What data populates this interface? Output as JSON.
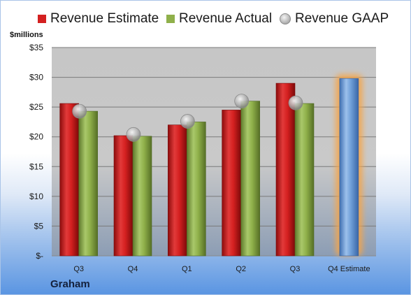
{
  "legend": {
    "estimate": "Revenue Estimate",
    "actual": "Revenue Actual",
    "gaap": "Revenue GAAP"
  },
  "unit_label": "$millions",
  "company": "Graham",
  "colors": {
    "estimate": "#d42020",
    "actual": "#8fb04a",
    "gaap": "#b8b8b8",
    "forecast": "#6f9fd8",
    "forecast_glow": "#f5a54a",
    "plot_bg": "#c8c8c8",
    "grid": "#7a7a7a"
  },
  "chart_data": {
    "type": "bar",
    "categories": [
      "Q3",
      "Q4",
      "Q1",
      "Q2",
      "Q3",
      "Q4 Estimate"
    ],
    "series": [
      {
        "name": "Revenue Estimate",
        "values": [
          25.6,
          20.2,
          22.0,
          24.5,
          29.0,
          29.8
        ]
      },
      {
        "name": "Revenue Actual",
        "values": [
          24.3,
          20.1,
          22.5,
          26.0,
          25.6,
          null
        ]
      },
      {
        "name": "Revenue GAAP",
        "values": [
          24.3,
          20.4,
          22.6,
          26.0,
          25.7,
          null
        ]
      }
    ],
    "yticks": [
      "$-",
      "$5",
      "$10",
      "$15",
      "$20",
      "$25",
      "$30",
      "$35"
    ],
    "ylim": [
      0,
      35
    ],
    "grid": true,
    "legend_position": "top"
  }
}
